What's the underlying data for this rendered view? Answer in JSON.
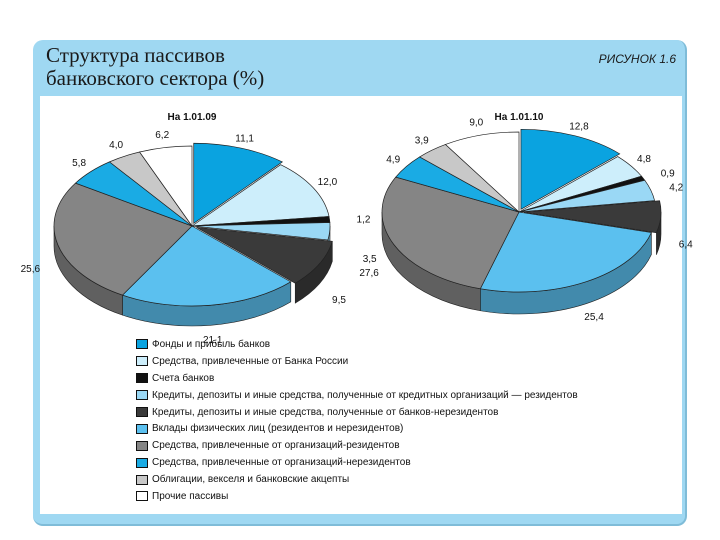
{
  "header": {
    "title_line1": "Структура пассивов",
    "title_line2": "банковского сектора (%)",
    "figure_label": "РИСУНОК 1.6"
  },
  "colors": {
    "background": "#ffffff",
    "frame": "#9fd8f2"
  },
  "legend": [
    {
      "label": "Фонды и прибыль банков",
      "color": "#0aa3e0"
    },
    {
      "label": "Средства, привлеченные от Банка России",
      "color": "#cdeefb"
    },
    {
      "label": "Счета банков",
      "color": "#111111"
    },
    {
      "label": "Кредиты, депозиты и иные средства, полученные от кредитных организаций — резидентов",
      "color": "#9ad8f5"
    },
    {
      "label": "Кредиты, депозиты и иные средства, полученные от банков-нерезидентов",
      "color": "#3a3a3a"
    },
    {
      "label": "Вклады физических лиц (резидентов и нерезидентов)",
      "color": "#5bc0ef"
    },
    {
      "label": "Средства, привлеченные от организаций-резидентов",
      "color": "#858585"
    },
    {
      "label": "Средства, привлеченные от организаций-нерезидентов",
      "color": "#1aabe4"
    },
    {
      "label": "Облигации, векселя и банковские акцепты",
      "color": "#c8c8c8"
    },
    {
      "label": "Прочие пассивы",
      "color": "#ffffff"
    }
  ],
  "chart_data": [
    {
      "type": "pie",
      "title": "На 1.01.09",
      "unit": "%",
      "categories": [
        "Фонды и прибыль банков",
        "Средства, привлеченные от Банка России",
        "Счета банков",
        "Кредиты, депозиты и иные средства, полученные от кредитных организаций — резидентов",
        "Кредиты, депозиты и иные средства, полученные от банков-нерезидентов",
        "Вклады физических лиц (резидентов и нерезидентов)",
        "Средства, привлеченные от организаций-резидентов",
        "Средства, привлеченные от организаций-нерезидентов",
        "Облигации, векселя и банковские акцепты",
        "Прочие пассивы"
      ],
      "values": [
        11.1,
        12.0,
        1.2,
        3.5,
        9.5,
        21.1,
        25.6,
        5.8,
        4.0,
        6.2
      ],
      "labels": [
        "11,1",
        "12,0",
        "1,2",
        "3,5",
        "9,5",
        "21,1",
        "25,6",
        "5,8",
        "4,0",
        "6,2"
      ]
    },
    {
      "type": "pie",
      "title": "На 1.01.10",
      "unit": "%",
      "categories": [
        "Фонды и прибыль банков",
        "Средства, привлеченные от Банка России",
        "Счета банков",
        "Кредиты, депозиты и иные средства, полученные от кредитных организаций — резидентов",
        "Кредиты, депозиты и иные средства, полученные от банков-нерезидентов",
        "Вклады физических лиц (резидентов и нерезидентов)",
        "Средства, привлеченные от организаций-резидентов",
        "Средства, привлеченные от организаций-нерезидентов",
        "Облигации, векселя и банковские акцепты",
        "Прочие пассивы"
      ],
      "values": [
        12.8,
        4.8,
        0.9,
        4.2,
        6.4,
        25.4,
        27.6,
        4.9,
        3.9,
        9.0
      ],
      "labels": [
        "12,8",
        "4,8",
        "0,9",
        "4,2",
        "6,4",
        "25,4",
        "27,6",
        "4,9",
        "3,9",
        "9,0"
      ]
    }
  ]
}
